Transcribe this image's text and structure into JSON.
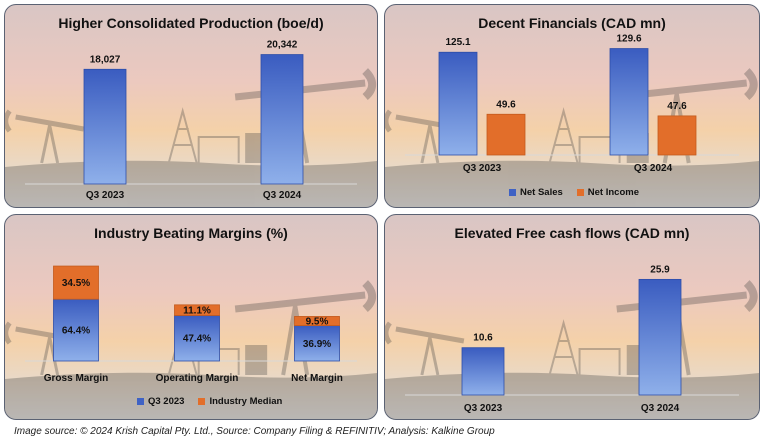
{
  "colors": {
    "blue_top": "#3a5cc0",
    "blue_bottom": "#8fb0ea",
    "orange": "#e26e2a",
    "orange_dark": "#c35a1d"
  },
  "chart_data": [
    {
      "type": "bar",
      "title": "Higher Consolidated Production (boe/d)",
      "categories": [
        "Q3 2023",
        "Q3 2024"
      ],
      "values": [
        18027,
        20342
      ],
      "value_labels": [
        "18,027",
        "20,342"
      ],
      "ylim": [
        0,
        22000
      ]
    },
    {
      "type": "bar",
      "title": "Decent Financials (CAD mn)",
      "categories": [
        "Q3 2023",
        "Q3 2024"
      ],
      "series": [
        {
          "name": "Net Sales",
          "values": [
            125.1,
            129.6
          ],
          "labels": [
            "125.1",
            "129.6"
          ]
        },
        {
          "name": "Net Income",
          "values": [
            49.6,
            47.6
          ],
          "labels": [
            "49.6",
            "47.6"
          ]
        }
      ],
      "legend": "bottom",
      "ylim": [
        0,
        140
      ]
    },
    {
      "type": "bar",
      "stacked": true,
      "title": "Industry Beating Margins (%)",
      "categories": [
        "Gross Margin",
        "Operating Margin",
        "Net Margin"
      ],
      "series": [
        {
          "name": "Q3 2023",
          "values": [
            64.4,
            47.4,
            36.9
          ],
          "labels": [
            "64.4%",
            "47.4%",
            "36.9%"
          ]
        },
        {
          "name": "Industry Median",
          "values": [
            34.5,
            11.1,
            9.5
          ],
          "labels": [
            "34.5%",
            "11.1%",
            "9.5%"
          ]
        }
      ],
      "legend": "bottom",
      "ylim": [
        0,
        100
      ]
    },
    {
      "type": "bar",
      "title": "Elevated Free cash flows (CAD mn)",
      "categories": [
        "Q3 2023",
        "Q3 2024"
      ],
      "values": [
        10.6,
        25.9
      ],
      "value_labels": [
        "10.6",
        "25.9"
      ],
      "ylim": [
        0,
        28
      ]
    }
  ],
  "source": "Image source: © 2024 Krish Capital Pty. Ltd., Source: Company Filing & REFINITIV; Analysis: Kalkine Group"
}
